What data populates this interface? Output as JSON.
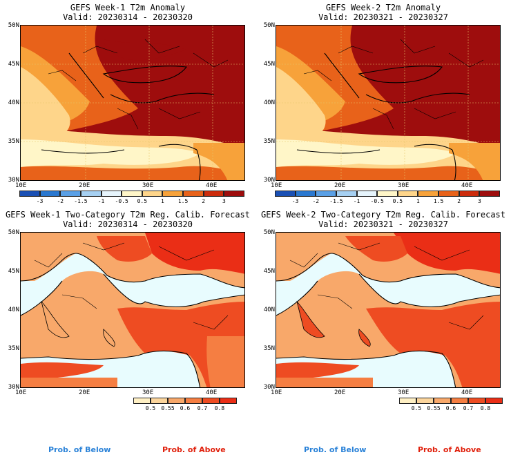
{
  "panels": {
    "p1": {
      "title_line1": "GEFS Week-1 T2m Anomaly",
      "title_line2": "Valid: 20230314 - 20230320"
    },
    "p2": {
      "title_line1": "GEFS Week-2 T2m Anomaly",
      "title_line2": "Valid: 20230321 - 20230327"
    },
    "p3": {
      "title_line1": "GEFS Week-1 Two-Category T2m Reg. Calib. Forecast",
      "title_line2": "Valid: 20230314 - 20230320"
    },
    "p4": {
      "title_line1": "GEFS Week-2 Two-Category T2m Reg. Calib. Forecast",
      "title_line2": "Valid: 20230321 - 20230327"
    }
  },
  "axes": {
    "lat_labels": [
      "50N",
      "45N",
      "40N",
      "35N",
      "30N"
    ],
    "lon_labels": [
      "10E",
      "20E",
      "30E",
      "40E"
    ]
  },
  "anomaly_colorbar": {
    "labels": [
      "-3",
      "-2",
      "-1.5",
      "-1",
      "-0.5",
      "0.5",
      "1",
      "1.5",
      "2",
      "3"
    ],
    "colors": [
      "#1a50b4",
      "#2a78d0",
      "#5aa0e6",
      "#a6d0f2",
      "#e6f4fc",
      "#fff6c8",
      "#fed58a",
      "#f7a23a",
      "#e8621a",
      "#cc2c0c",
      "#9e0d0d"
    ]
  },
  "prob_colorbar": {
    "labels": [
      "0.5",
      "0.55",
      "0.6",
      "0.7",
      "0.8"
    ],
    "colors": [
      "#fff0c4",
      "#fcd59c",
      "#f8a86a",
      "#f57e42",
      "#ee4c22",
      "#ea2e16"
    ]
  },
  "legend": {
    "below": "Prob. of Below",
    "above": "Prob. of Above"
  },
  "colors": {
    "sea": "#e8fcfe",
    "coast": "#000000"
  }
}
